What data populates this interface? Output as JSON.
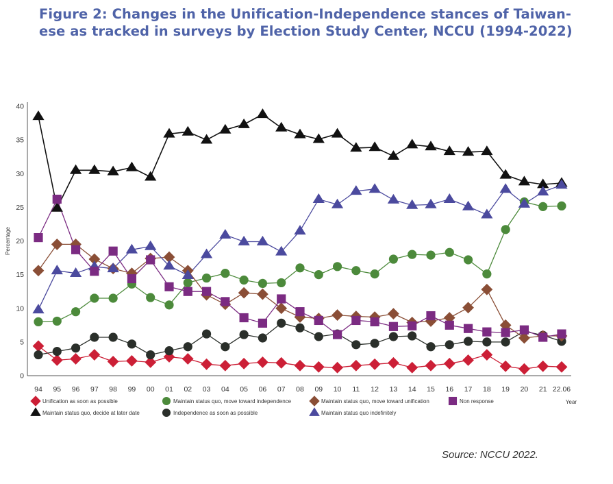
{
  "title_line1": "Figure 2: Changes in the Unification-Independence stances of Taiwan-",
  "title_line2": "ese as tracked in surveys by Election Study Center, NCCU (1994-2022)",
  "source": "Source: NCCU 2022.",
  "chart_data": {
    "type": "line",
    "ylabel": "Percentage",
    "xlabel": "Year",
    "ylim": [
      0,
      40
    ],
    "yticks": [
      0,
      5,
      10,
      15,
      20,
      25,
      30,
      35,
      40
    ],
    "grid": false,
    "legend_position": "bottom",
    "x": [
      "94",
      "95",
      "96",
      "97",
      "98",
      "99",
      "00",
      "01",
      "02",
      "03",
      "04",
      "05",
      "06",
      "07",
      "08",
      "09",
      "10",
      "11",
      "12",
      "13",
      "14",
      "15",
      "16",
      "17",
      "18",
      "19",
      "20",
      "21",
      "22.06"
    ],
    "series": [
      {
        "name": "Unification as soon as possible",
        "color": "#cc1f36",
        "marker": "diamond",
        "values": [
          4.4,
          2.3,
          2.5,
          3.1,
          2.1,
          2.2,
          2.0,
          2.8,
          2.5,
          1.7,
          1.5,
          1.8,
          2.0,
          1.9,
          1.5,
          1.3,
          1.2,
          1.5,
          1.7,
          1.9,
          1.2,
          1.5,
          1.8,
          2.3,
          3.1,
          1.4,
          1.0,
          1.4,
          1.3
        ]
      },
      {
        "name": "Maintain status quo, decide at later date",
        "color": "#111111",
        "marker": "triangle",
        "values": [
          38.5,
          24.9,
          30.5,
          30.5,
          30.3,
          30.9,
          29.5,
          35.9,
          36.2,
          35.0,
          36.5,
          37.3,
          38.8,
          36.8,
          35.8,
          35.1,
          35.9,
          33.8,
          33.9,
          32.6,
          34.3,
          34.0,
          33.3,
          33.2,
          33.3,
          29.8,
          28.8,
          28.4,
          28.6
        ]
      },
      {
        "name": "Maintain status quo, move toward independence",
        "color": "#4c8a3b",
        "marker": "circle",
        "values": [
          8.0,
          8.1,
          9.5,
          11.5,
          11.5,
          13.6,
          11.6,
          10.5,
          13.8,
          14.5,
          15.2,
          14.2,
          13.7,
          13.8,
          16.0,
          15.0,
          16.2,
          15.6,
          15.1,
          17.3,
          18.0,
          17.9,
          18.3,
          17.2,
          15.1,
          21.7,
          25.8,
          25.1,
          25.2
        ]
      },
      {
        "name": "Independence as soon as possible",
        "color": "#2a2f2a",
        "marker": "circle",
        "values": [
          3.1,
          3.6,
          4.1,
          5.7,
          5.7,
          4.7,
          3.1,
          3.7,
          4.3,
          6.2,
          4.3,
          6.1,
          5.6,
          7.8,
          7.1,
          5.8,
          6.2,
          4.6,
          4.8,
          5.8,
          5.9,
          4.3,
          4.6,
          5.1,
          5.0,
          5.0,
          6.6,
          6.0,
          5.1
        ]
      },
      {
        "name": "Maintain status quo, move toward unification",
        "color": "#8a4e36",
        "marker": "diamond",
        "values": [
          15.6,
          19.5,
          19.5,
          17.3,
          15.9,
          15.2,
          17.4,
          17.6,
          15.6,
          12.0,
          10.6,
          12.3,
          12.1,
          10.0,
          8.7,
          8.5,
          9.0,
          8.8,
          8.7,
          9.2,
          7.9,
          8.1,
          8.6,
          10.1,
          12.8,
          7.5,
          5.6,
          5.9,
          5.9
        ]
      },
      {
        "name": "Maintain status quo indefinitely",
        "color": "#4b4a9e",
        "marker": "triangle",
        "values": [
          9.8,
          15.6,
          15.2,
          16.2,
          15.9,
          18.7,
          19.2,
          16.3,
          14.9,
          18.0,
          20.9,
          19.9,
          19.9,
          18.4,
          21.5,
          26.2,
          25.4,
          27.4,
          27.7,
          26.1,
          25.3,
          25.4,
          26.2,
          25.1,
          23.9,
          27.7,
          25.5,
          27.3,
          28.3
        ]
      },
      {
        "name": "Non response",
        "color": "#7b2b82",
        "marker": "square",
        "values": [
          20.5,
          26.2,
          18.7,
          15.5,
          18.5,
          14.4,
          17.2,
          13.2,
          12.5,
          12.5,
          11.0,
          8.6,
          7.8,
          11.4,
          9.5,
          8.2,
          6.1,
          8.2,
          8.0,
          7.3,
          7.4,
          8.9,
          7.5,
          7.0,
          6.5,
          6.4,
          6.8,
          5.7,
          6.2
        ]
      }
    ]
  }
}
